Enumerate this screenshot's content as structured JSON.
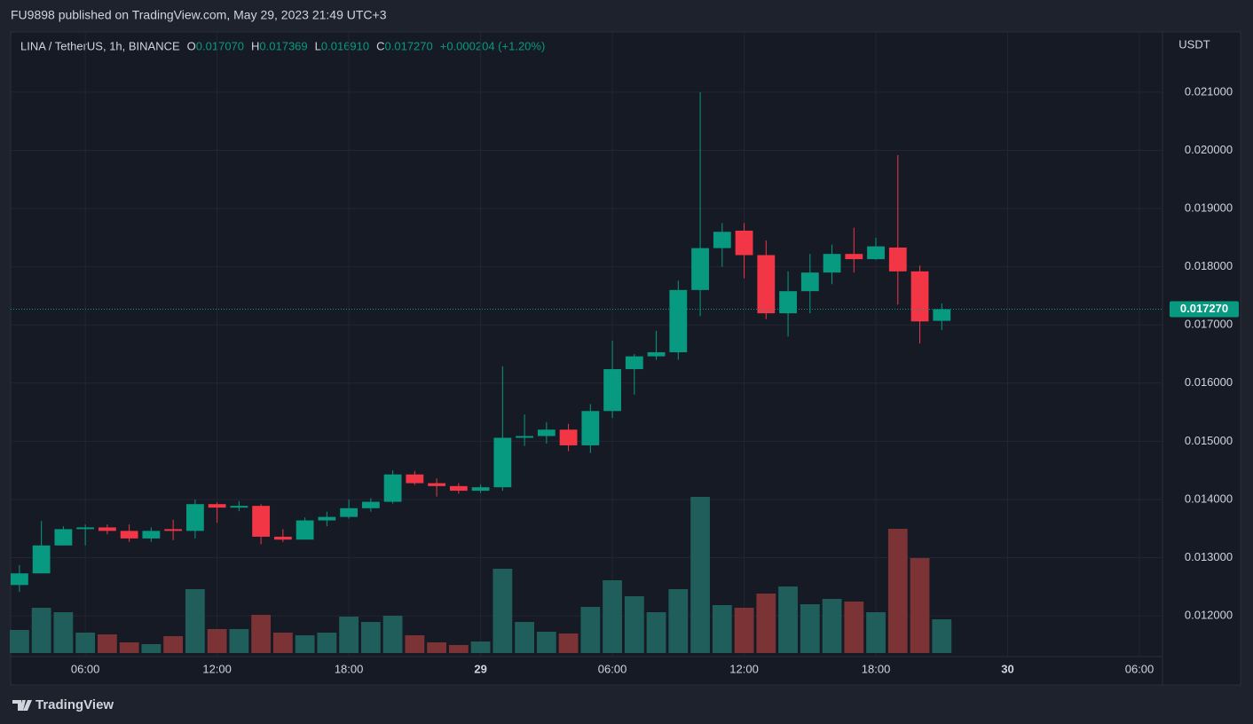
{
  "page": {
    "published": "FU9898 published on TradingView.com, May 29, 2023 21:49 UTC+3",
    "brand": "TradingView"
  },
  "chart_data": {
    "type": "candlestick",
    "header": {
      "symbol": "LINA / TetherUS, 1h, BINANCE",
      "o_label": "O",
      "o": "0.017070",
      "h_label": "H",
      "h": "0.017369",
      "l_label": "L",
      "l": "0.016910",
      "c_label": "C",
      "c": "0.017270",
      "change": "+0.000204 (+1.20%)"
    },
    "y_axis_label": "USDT",
    "last_price_label": "0.017270",
    "x": [
      3,
      4,
      5,
      6,
      7,
      8,
      9,
      10,
      11,
      12,
      13,
      14,
      15,
      16,
      17,
      18,
      19,
      20,
      21,
      22,
      23,
      24,
      25,
      26,
      27,
      28,
      29,
      30,
      31,
      32,
      33,
      34,
      35,
      36,
      37,
      38,
      39,
      40,
      41,
      42,
      43,
      44,
      45
    ],
    "open": [
      0.01253,
      0.01273,
      0.01321,
      0.01349,
      0.01352,
      0.01346,
      0.01333,
      0.01349,
      0.01346,
      0.01392,
      0.01386,
      0.01389,
      0.01336,
      0.01331,
      0.01364,
      0.0137,
      0.01385,
      0.01396,
      0.01443,
      0.01428,
      0.01423,
      0.01415,
      0.01421,
      0.01506,
      0.01509,
      0.0152,
      0.01493,
      0.01552,
      0.01624,
      0.01646,
      0.01653,
      0.0176,
      0.01832,
      0.01862,
      0.0182,
      0.0172,
      0.01758,
      0.0179,
      0.01822,
      0.01813,
      0.01833,
      0.01792,
      0.01707
    ],
    "high": [
      0.01287,
      0.01363,
      0.01354,
      0.01357,
      0.01357,
      0.01357,
      0.01352,
      0.01365,
      0.014,
      0.01395,
      0.01397,
      0.01392,
      0.01349,
      0.01369,
      0.01379,
      0.014,
      0.01402,
      0.0145,
      0.01449,
      0.01436,
      0.01428,
      0.01426,
      0.01629,
      0.01546,
      0.01533,
      0.0153,
      0.01564,
      0.01673,
      0.0165,
      0.0169,
      0.01776,
      0.021,
      0.01875,
      0.01875,
      0.01845,
      0.01792,
      0.01822,
      0.01838,
      0.01867,
      0.0185,
      0.01992,
      0.01802,
      0.01737
    ],
    "low": [
      0.01241,
      0.01273,
      0.01321,
      0.01321,
      0.0134,
      0.01327,
      0.01327,
      0.0133,
      0.01333,
      0.0136,
      0.0138,
      0.01323,
      0.01327,
      0.01331,
      0.01354,
      0.01367,
      0.01379,
      0.01393,
      0.01425,
      0.01405,
      0.0141,
      0.01411,
      0.01415,
      0.01492,
      0.01496,
      0.01483,
      0.0148,
      0.0154,
      0.0158,
      0.0164,
      0.0164,
      0.01715,
      0.018,
      0.0178,
      0.0171,
      0.0168,
      0.0172,
      0.0177,
      0.0179,
      0.01812,
      0.01735,
      0.01668,
      0.01691
    ],
    "close": [
      0.01273,
      0.01321,
      0.01349,
      0.01352,
      0.01346,
      0.01333,
      0.01346,
      0.01346,
      0.01392,
      0.01386,
      0.01389,
      0.01336,
      0.01331,
      0.01364,
      0.0137,
      0.01385,
      0.01396,
      0.01443,
      0.01428,
      0.01423,
      0.01415,
      0.01421,
      0.01506,
      0.01509,
      0.0152,
      0.01493,
      0.01552,
      0.01624,
      0.01646,
      0.01653,
      0.0176,
      0.01832,
      0.0186,
      0.0182,
      0.0172,
      0.01758,
      0.0179,
      0.01822,
      0.01813,
      0.01835,
      0.01792,
      0.01706,
      0.01727
    ],
    "volume": [
      26,
      51,
      46,
      23,
      21,
      12,
      10,
      19,
      72,
      27,
      27,
      43,
      23,
      20,
      23,
      41,
      35,
      42,
      20,
      12,
      9,
      13,
      95,
      35,
      24,
      22,
      52,
      82,
      64,
      46,
      72,
      176,
      54,
      51,
      67,
      75,
      55,
      61,
      58,
      46,
      140,
      107,
      38
    ],
    "volume_lim": [
      0,
      700
    ],
    "xlim": [
      2.6,
      55.05
    ],
    "xticks": [
      {
        "value": 6,
        "label": "06:00"
      },
      {
        "value": 12,
        "label": "12:00"
      },
      {
        "value": 18,
        "label": "18:00"
      },
      {
        "value": 24,
        "label": "29"
      },
      {
        "value": 30,
        "label": "06:00"
      },
      {
        "value": 36,
        "label": "12:00"
      },
      {
        "value": 42,
        "label": "18:00"
      },
      {
        "value": 48,
        "label": "30"
      },
      {
        "value": 54,
        "label": "06:00"
      }
    ],
    "ylim": [
      0.0113,
      0.02202
    ],
    "yticks": [
      {
        "value": 0.012,
        "label": "0.012000"
      },
      {
        "value": 0.013,
        "label": "0.013000"
      },
      {
        "value": 0.014,
        "label": "0.014000"
      },
      {
        "value": 0.015,
        "label": "0.015000"
      },
      {
        "value": 0.016,
        "label": "0.016000"
      },
      {
        "value": 0.017,
        "label": "0.017000"
      },
      {
        "value": 0.018,
        "label": "0.018000"
      },
      {
        "value": 0.019,
        "label": "0.019000"
      },
      {
        "value": 0.02,
        "label": "0.020000"
      },
      {
        "value": 0.021,
        "label": "0.021000"
      }
    ],
    "grid": true,
    "up_color": "#089981",
    "down_color": "#f23645",
    "up_volume_color": "#1f5e5a",
    "down_volume_color": "#7b3336"
  }
}
